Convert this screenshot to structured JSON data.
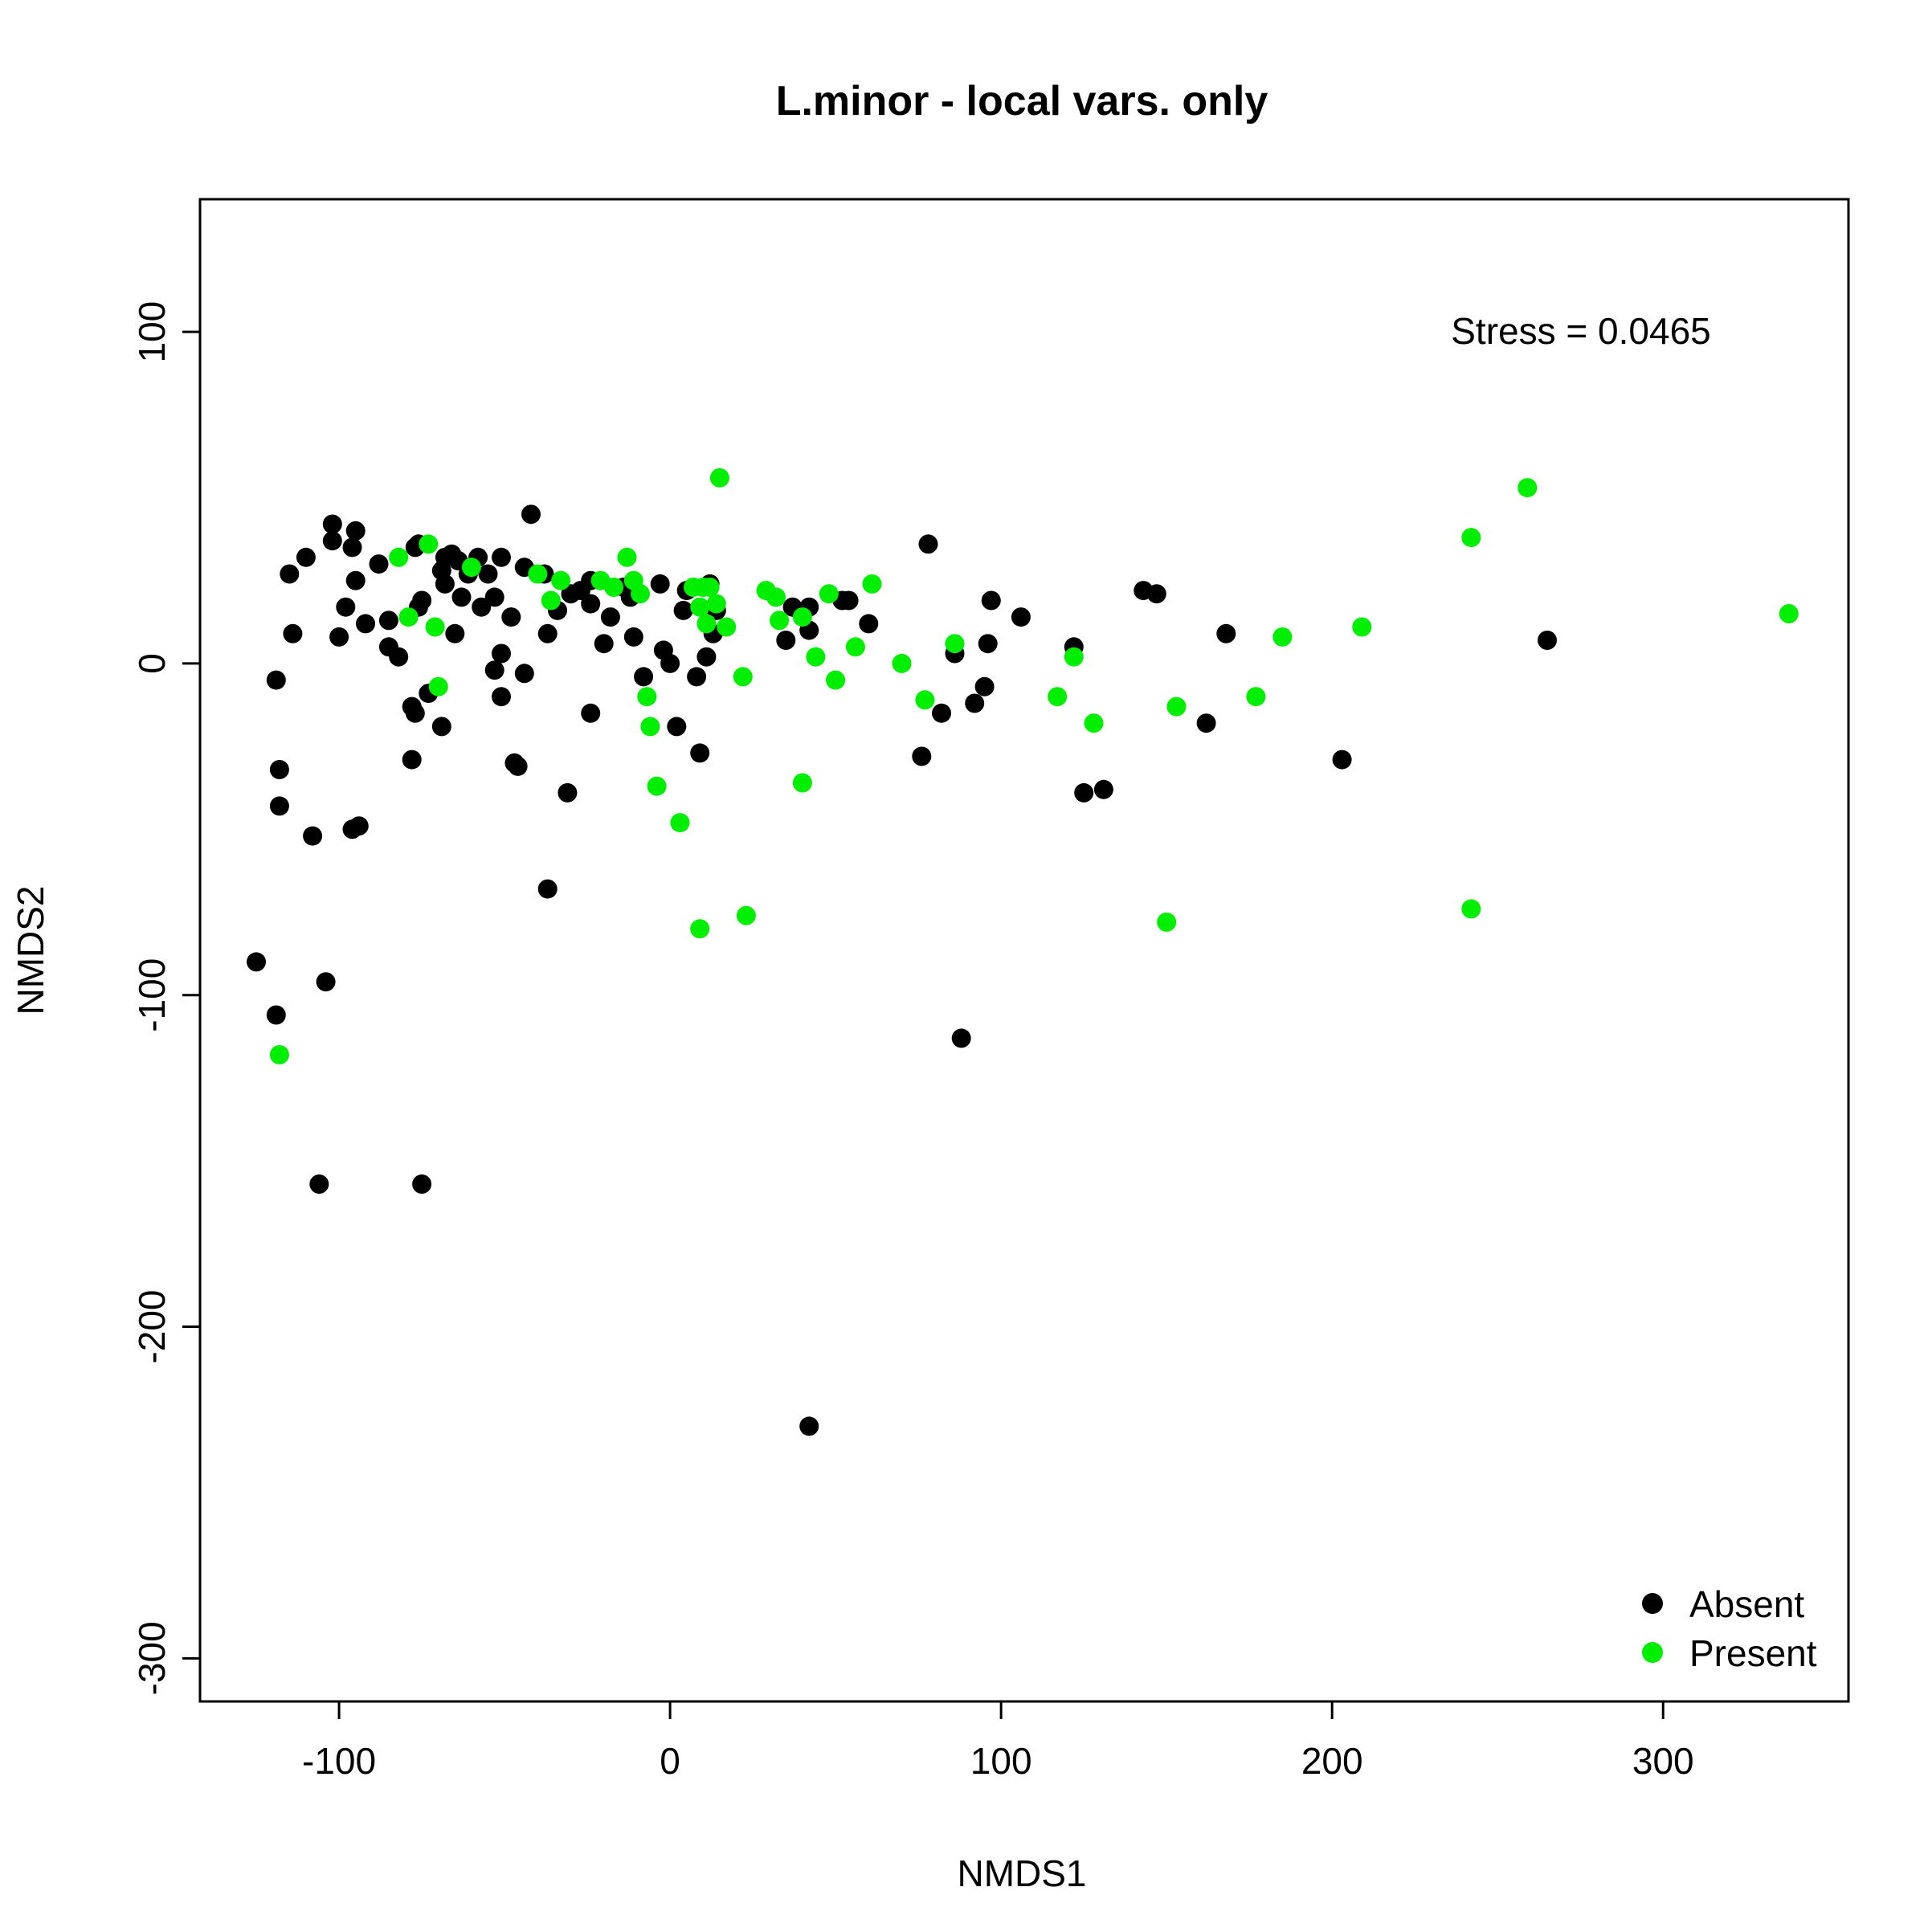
{
  "chart_data": {
    "type": "scatter",
    "title": "L.minor - local vars. only",
    "xlabel": "NMDS1",
    "ylabel": "NMDS2",
    "xlim": [
      -142,
      356
    ],
    "ylim": [
      -313,
      140
    ],
    "xticks": [
      -100,
      0,
      100,
      200,
      300
    ],
    "yticks": [
      -300,
      -200,
      -100,
      0,
      100
    ],
    "xtick_labels": [
      "-100",
      "0",
      "100",
      "200",
      "300"
    ],
    "ytick_labels": [
      "-300",
      "-200",
      "-100",
      "0",
      "100"
    ],
    "grid": false,
    "annotation": "Stress = 0.0465",
    "legend": {
      "position": "bottom-right",
      "entries": [
        "Absent",
        "Present"
      ]
    },
    "series": [
      {
        "name": "Absent",
        "color": "#000000",
        "points": [
          [
            -102,
            42
          ],
          [
            -95,
            40
          ],
          [
            -102,
            37
          ],
          [
            -96,
            35
          ],
          [
            -115,
            27
          ],
          [
            -110,
            32
          ],
          [
            -95,
            25
          ],
          [
            -98,
            17
          ],
          [
            -92,
            12
          ],
          [
            -100,
            8
          ],
          [
            -114,
            9
          ],
          [
            -119,
            -5
          ],
          [
            -118,
            -32
          ],
          [
            -118,
            -43
          ],
          [
            -108,
            -52
          ],
          [
            -96,
            -50
          ],
          [
            -94,
            -49
          ],
          [
            -125,
            -90
          ],
          [
            -119,
            -106
          ],
          [
            -104,
            -96
          ],
          [
            -106,
            -157
          ],
          [
            -75,
            -157
          ],
          [
            -88,
            30
          ],
          [
            -77,
            35
          ],
          [
            -76,
            36
          ],
          [
            -85,
            13
          ],
          [
            -85,
            5
          ],
          [
            -82,
            2
          ],
          [
            -76,
            17
          ],
          [
            -75,
            19
          ],
          [
            -78,
            -13
          ],
          [
            -77,
            -15
          ],
          [
            -73,
            -9
          ],
          [
            -78,
            -29
          ],
          [
            -69,
            -19
          ],
          [
            -69,
            28
          ],
          [
            -68,
            32
          ],
          [
            -66,
            33
          ],
          [
            -68,
            24
          ],
          [
            -64,
            31
          ],
          [
            -63,
            20
          ],
          [
            -65,
            9
          ],
          [
            -61,
            27
          ],
          [
            -58,
            32
          ],
          [
            -57,
            17
          ],
          [
            -55,
            27
          ],
          [
            -53,
            20
          ],
          [
            -51,
            32
          ],
          [
            -48,
            14
          ],
          [
            -53,
            -2
          ],
          [
            -51,
            3
          ],
          [
            -51,
            -10
          ],
          [
            -47,
            -30
          ],
          [
            -46,
            -31
          ],
          [
            -44,
            -3
          ],
          [
            -44,
            29
          ],
          [
            -42,
            45
          ],
          [
            -38,
            27
          ],
          [
            -37,
            9
          ],
          [
            -37,
            -68
          ],
          [
            -34,
            16
          ],
          [
            -31,
            -39
          ],
          [
            -30,
            21
          ],
          [
            -27,
            22
          ],
          [
            -24,
            25
          ],
          [
            -24,
            18
          ],
          [
            -24,
            -15
          ],
          [
            -20,
            6
          ],
          [
            -18,
            14
          ],
          [
            -14,
            23
          ],
          [
            -12,
            20
          ],
          [
            -11,
            8
          ],
          [
            -8,
            -4
          ],
          [
            -3,
            24
          ],
          [
            -2,
            4
          ],
          [
            0,
            0
          ],
          [
            2,
            -19
          ],
          [
            4,
            16
          ],
          [
            5,
            22
          ],
          [
            8,
            -4
          ],
          [
            9,
            -27
          ],
          [
            11,
            2
          ],
          [
            13,
            9
          ],
          [
            12,
            24
          ],
          [
            14,
            16
          ],
          [
            35,
            7
          ],
          [
            37,
            17
          ],
          [
            42,
            17
          ],
          [
            42,
            10
          ],
          [
            42,
            -230
          ],
          [
            52,
            19
          ],
          [
            54,
            19
          ],
          [
            60,
            12
          ],
          [
            76,
            -28
          ],
          [
            78,
            36
          ],
          [
            82,
            -15
          ],
          [
            86,
            3
          ],
          [
            88,
            -113
          ],
          [
            92,
            -12
          ],
          [
            95,
            -7
          ],
          [
            96,
            6
          ],
          [
            97,
            19
          ],
          [
            106,
            14
          ],
          [
            122,
            5
          ],
          [
            125,
            -39
          ],
          [
            131,
            -38
          ],
          [
            143,
            22
          ],
          [
            147,
            21
          ],
          [
            162,
            -18
          ],
          [
            168,
            9
          ],
          [
            203,
            -29
          ],
          [
            265,
            7
          ]
        ]
      },
      {
        "name": "Present",
        "color": "#00ee00",
        "points": [
          [
            -82,
            32
          ],
          [
            -73,
            36
          ],
          [
            -79,
            14
          ],
          [
            -71,
            11
          ],
          [
            -70,
            -7
          ],
          [
            -60,
            29
          ],
          [
            -40,
            27
          ],
          [
            -36,
            19
          ],
          [
            -33,
            25
          ],
          [
            -21,
            25
          ],
          [
            -17,
            23
          ],
          [
            -13,
            32
          ],
          [
            -11,
            25
          ],
          [
            -9,
            21
          ],
          [
            -7,
            -10
          ],
          [
            -6,
            -19
          ],
          [
            -4,
            -37
          ],
          [
            3,
            -48
          ],
          [
            7,
            23
          ],
          [
            9,
            17
          ],
          [
            10,
            23
          ],
          [
            11,
            12
          ],
          [
            12,
            23
          ],
          [
            14,
            18
          ],
          [
            15,
            56
          ],
          [
            17,
            11
          ],
          [
            22,
            -4
          ],
          [
            23,
            -76
          ],
          [
            9,
            -80
          ],
          [
            29,
            22
          ],
          [
            32,
            20
          ],
          [
            33,
            13
          ],
          [
            40,
            14
          ],
          [
            40,
            -36
          ],
          [
            44,
            2
          ],
          [
            48,
            21
          ],
          [
            50,
            -5
          ],
          [
            56,
            5
          ],
          [
            61,
            24
          ],
          [
            70,
            0
          ],
          [
            77,
            -11
          ],
          [
            86,
            6
          ],
          [
            117,
            -10
          ],
          [
            122,
            2
          ],
          [
            128,
            -18
          ],
          [
            150,
            -78
          ],
          [
            153,
            -13
          ],
          [
            177,
            -10
          ],
          [
            185,
            8
          ],
          [
            209,
            11
          ],
          [
            242,
            38
          ],
          [
            242,
            -74
          ],
          [
            259,
            53
          ],
          [
            338,
            15
          ],
          [
            -118,
            -118
          ]
        ]
      }
    ]
  }
}
